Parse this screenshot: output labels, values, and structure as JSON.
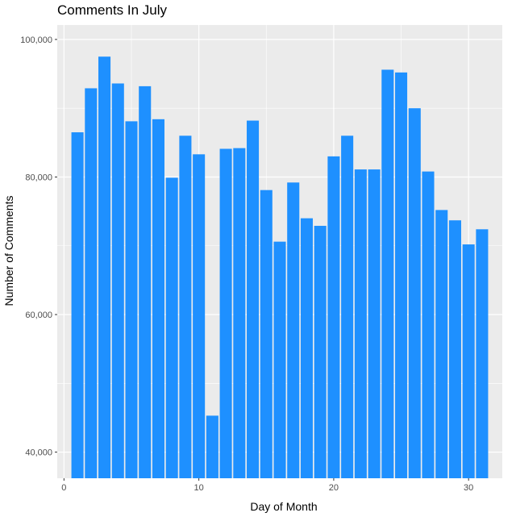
{
  "chart_data": {
    "type": "bar",
    "title": "Comments In July",
    "xlabel": "Day of Month",
    "ylabel": "Number of Comments",
    "x": [
      1,
      2,
      3,
      4,
      5,
      6,
      7,
      8,
      9,
      10,
      11,
      12,
      13,
      14,
      15,
      16,
      17,
      18,
      19,
      20,
      21,
      22,
      23,
      24,
      25,
      26,
      27,
      28,
      29,
      30,
      31
    ],
    "values": [
      86500,
      92900,
      97500,
      93600,
      88100,
      93200,
      88400,
      79900,
      86000,
      83300,
      45300,
      84100,
      84200,
      88200,
      78100,
      70600,
      79200,
      74000,
      72900,
      83000,
      86000,
      81100,
      81100,
      95600,
      95200,
      90000,
      80800,
      75200,
      73700,
      70200,
      72400
    ],
    "xlim": [
      -0.5,
      32.5
    ],
    "ylim": [
      36200,
      102100
    ],
    "xticks": [
      0,
      10,
      20,
      30
    ],
    "xtick_labels": [
      "0",
      "10",
      "20",
      "30"
    ],
    "yticks": [
      40000,
      60000,
      80000,
      100000
    ],
    "ytick_labels": [
      "40,000",
      "60,000",
      "80,000",
      "100,000"
    ],
    "grid": true,
    "bar_color": "#1E90FF",
    "panel_background": "#EBEBEB",
    "grid_color": "#FFFFFF"
  }
}
